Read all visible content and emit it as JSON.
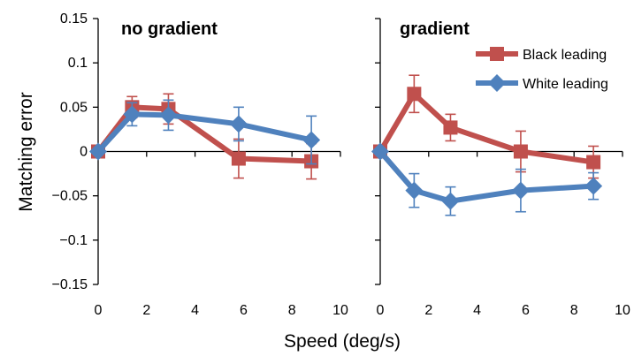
{
  "chart_data": {
    "type": "line",
    "ylabel": "Matching error",
    "xlabel": "Speed (deg/s)",
    "ylim": [
      -0.15,
      0.15
    ],
    "xlim": [
      0,
      10
    ],
    "y_ticks": [
      "0.15",
      "0.1",
      "0.05",
      "0",
      "−0.05",
      "−0.1",
      "−0.15"
    ],
    "x_ticks": [
      "0",
      "2",
      "4",
      "6",
      "8",
      "10"
    ],
    "legend": {
      "placement": "top-right of right panel",
      "entries": [
        "Black leading",
        "White leading"
      ]
    },
    "colors": {
      "black_leading": "#c0504d",
      "white_leading": "#4f81bd"
    },
    "panels": [
      {
        "title": "no gradient",
        "series": [
          {
            "name": "Black leading",
            "x": [
              0,
              1.4,
              2.9,
              5.8,
              8.8
            ],
            "y": [
              0,
              0.05,
              0.048,
              -0.008,
              -0.011
            ],
            "err": [
              0,
              0.012,
              0.017,
              0.022,
              0.02
            ]
          },
          {
            "name": "White leading",
            "x": [
              0,
              1.4,
              2.9,
              5.8,
              8.8
            ],
            "y": [
              0,
              0.042,
              0.041,
              0.031,
              0.013
            ],
            "err": [
              0,
              0.013,
              0.017,
              0.019,
              0.027
            ]
          }
        ]
      },
      {
        "title": "gradient",
        "series": [
          {
            "name": "Black leading",
            "x": [
              0,
              1.4,
              2.9,
              5.8,
              8.8
            ],
            "y": [
              0,
              0.065,
              0.027,
              0,
              -0.012
            ],
            "err": [
              0,
              0.021,
              0.015,
              0.023,
              0.018
            ]
          },
          {
            "name": "White leading",
            "x": [
              0,
              1.4,
              2.9,
              5.8,
              8.8
            ],
            "y": [
              0,
              -0.044,
              -0.056,
              -0.044,
              -0.039
            ],
            "err": [
              0,
              0.019,
              0.016,
              0.024,
              0.015
            ]
          }
        ]
      }
    ]
  }
}
